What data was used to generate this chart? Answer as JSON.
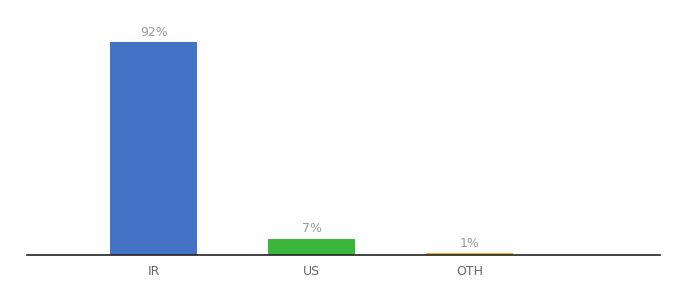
{
  "categories": [
    "IR",
    "US",
    "OTH"
  ],
  "values": [
    92,
    7,
    1
  ],
  "bar_colors": [
    "#4472C4",
    "#3CB53C",
    "#F5A623"
  ],
  "labels": [
    "92%",
    "7%",
    "1%"
  ],
  "label_color": "#999999",
  "background_color": "#ffffff",
  "ylim": [
    0,
    100
  ],
  "bar_width": 0.55,
  "label_fontsize": 9,
  "tick_fontsize": 9,
  "tick_color": "#666666",
  "x_positions": [
    1,
    2,
    3
  ],
  "xlim": [
    0.2,
    4.2
  ]
}
